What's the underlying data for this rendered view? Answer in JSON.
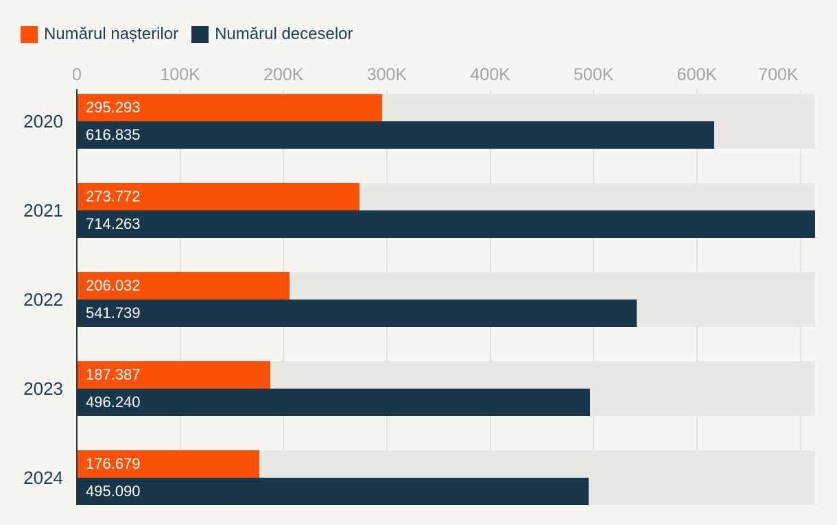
{
  "chart_data": {
    "type": "bar",
    "orientation": "horizontal",
    "title": "",
    "xlabel": "",
    "ylabel": "",
    "categories": [
      "2020",
      "2021",
      "2022",
      "2023",
      "2024"
    ],
    "series": [
      {
        "name": "Numărul nașterilor",
        "color": "#fb5108",
        "values": [
          295293,
          273772,
          206032,
          187387,
          176679
        ],
        "value_labels": [
          "295.293",
          "273.772",
          "206.032",
          "187.387",
          "176.679"
        ]
      },
      {
        "name": "Numărul deceselor",
        "color": "#18374a",
        "values": [
          616835,
          714263,
          541739,
          496240,
          495090
        ],
        "value_labels": [
          "616.835",
          "714.263",
          "541.739",
          "496.240",
          "495.090"
        ]
      }
    ],
    "x_ticks": [
      {
        "value": 0,
        "label": "0"
      },
      {
        "value": 100000,
        "label": "100K"
      },
      {
        "value": 200000,
        "label": "200K"
      },
      {
        "value": 300000,
        "label": "300K"
      },
      {
        "value": 400000,
        "label": "400K"
      },
      {
        "value": 500000,
        "label": "500K"
      },
      {
        "value": 600000,
        "label": "600K"
      },
      {
        "value": 700000,
        "label": "700K"
      }
    ],
    "xlim": [
      0,
      714263
    ],
    "grid": true,
    "legend_position": "top-left",
    "colors": {
      "background": "#f7f5f2",
      "bar_track": "#e9e7e4",
      "gridline": "#e2dfdc",
      "axis_line": "#2e373d",
      "tick_label": "#a6a4a1",
      "category_label": "#1d4254",
      "value_label": "#ffffff"
    }
  }
}
